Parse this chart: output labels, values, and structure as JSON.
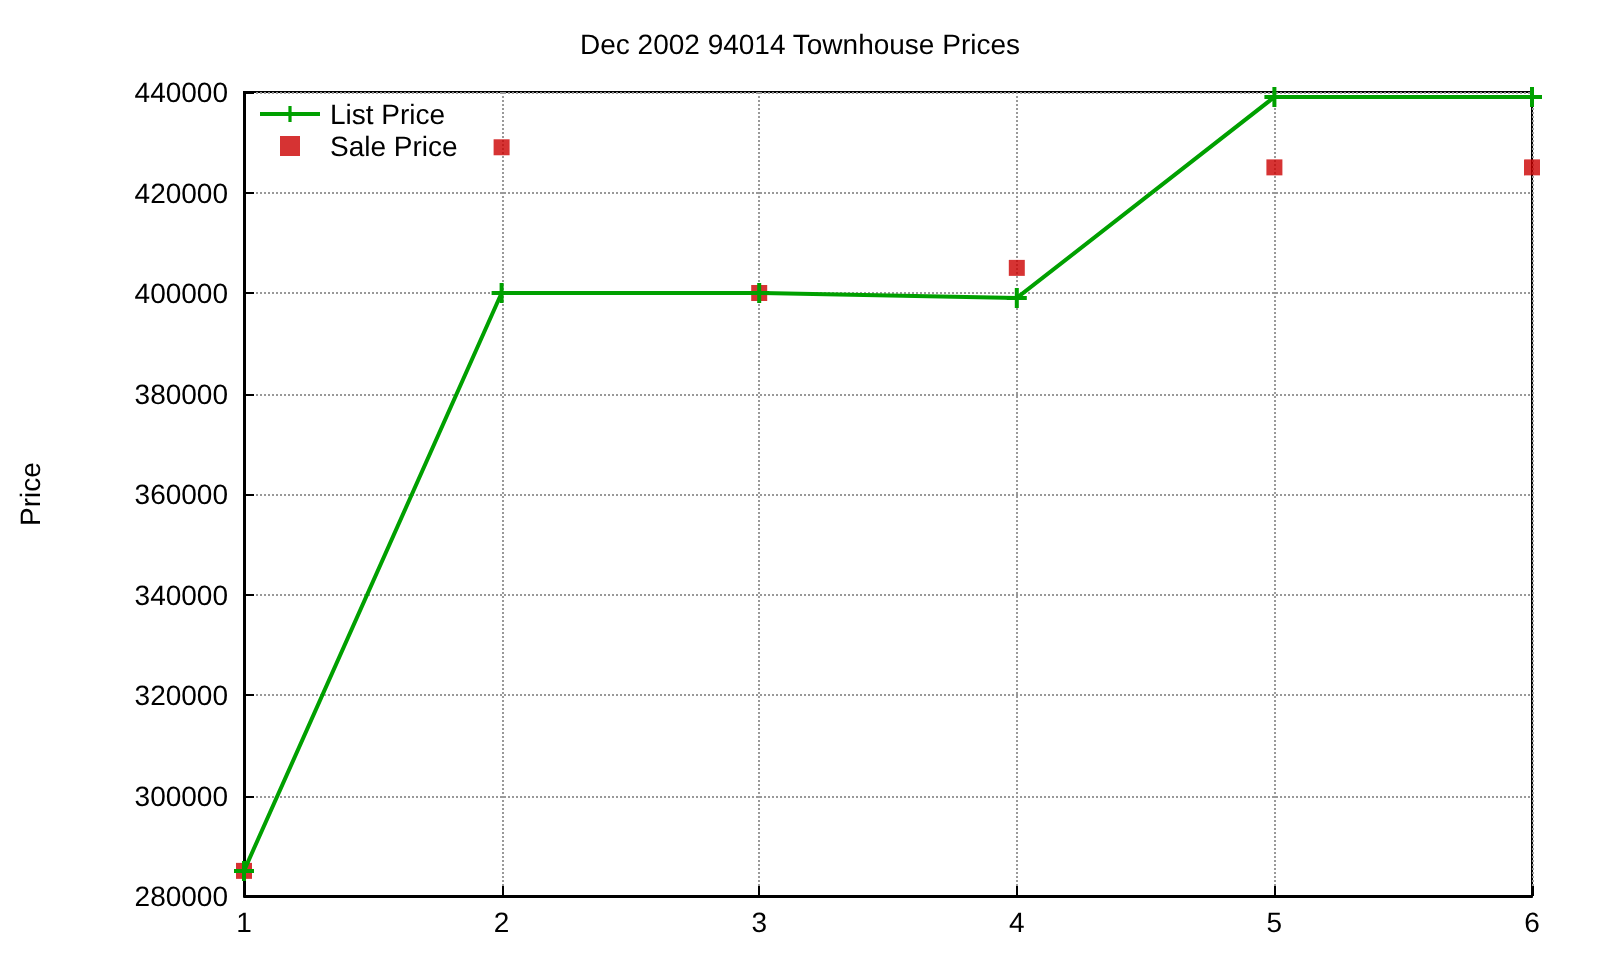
{
  "chart_data": {
    "type": "line",
    "title": "Dec 2002 94014 Townhouse Prices",
    "ylabel": "Price",
    "x": [
      1,
      2,
      3,
      4,
      5,
      6
    ],
    "series": [
      {
        "name": "List Price",
        "color": "#00a000",
        "marker": "cross",
        "values": [
          285000,
          400000,
          400000,
          399000,
          439000,
          439000
        ]
      },
      {
        "name": "Sale Price",
        "type": "scatter",
        "color": "#cc0000",
        "marker": "square",
        "values": [
          285000,
          429000,
          400000,
          405000,
          425000,
          425000
        ]
      }
    ],
    "xlim": [
      1,
      6
    ],
    "xticks": [
      1,
      2,
      3,
      4,
      5,
      6
    ],
    "ylim": [
      280000,
      440000
    ],
    "yticks": [
      280000,
      300000,
      320000,
      340000,
      360000,
      380000,
      400000,
      420000,
      440000
    ],
    "grid": true,
    "legend": "top left"
  }
}
